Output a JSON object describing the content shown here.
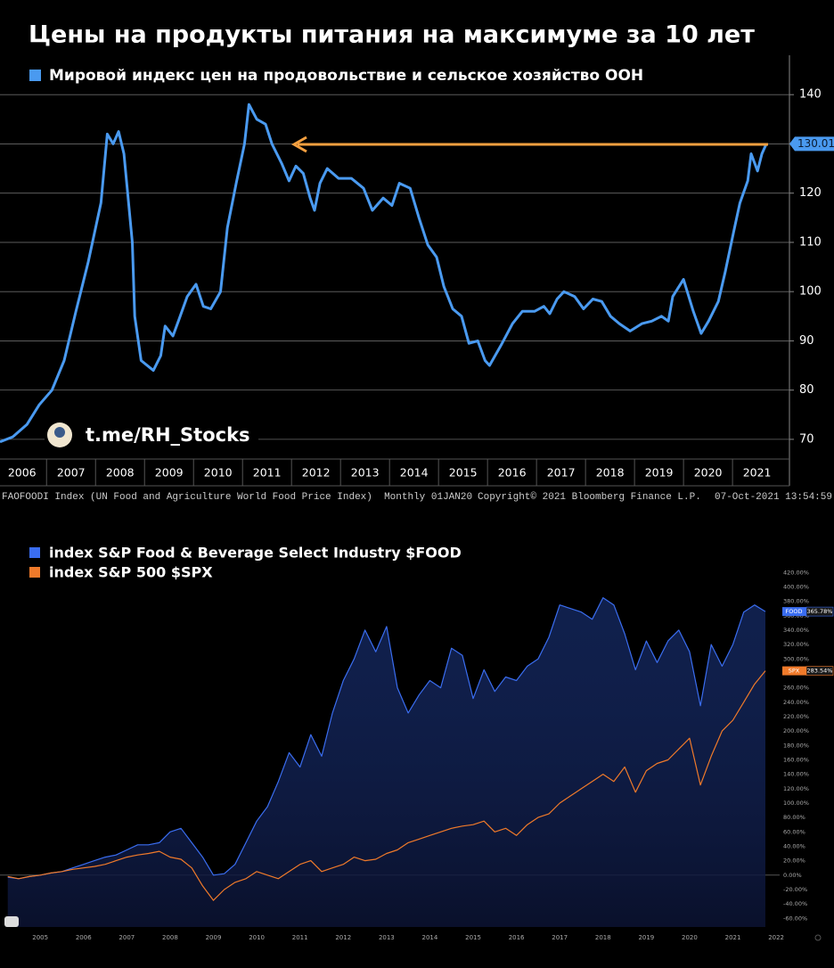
{
  "chart_data": [
    {
      "type": "line",
      "title": "Цены на продукты питания на максимуме за 10 лет",
      "x": [
        2006.05,
        2006.31,
        2006.6,
        2006.85,
        2007.11,
        2007.36,
        2007.6,
        2007.85,
        2008.11,
        2008.24,
        2008.36,
        2008.47,
        2008.58,
        2008.75,
        2008.8,
        2008.93,
        2009.18,
        2009.33,
        2009.42,
        2009.58,
        2009.69,
        2009.87,
        2010.05,
        2010.2,
        2010.35,
        2010.55,
        2010.69,
        2010.87,
        2011.04,
        2011.13,
        2011.29,
        2011.47,
        2011.6,
        2011.8,
        2011.95,
        2012.09,
        2012.24,
        2012.38,
        2012.47,
        2012.58,
        2012.73,
        2012.96,
        2013.22,
        2013.47,
        2013.65,
        2013.87,
        2014.05,
        2014.2,
        2014.42,
        2014.6,
        2014.78,
        2014.96,
        2015.11,
        2015.29,
        2015.47,
        2015.62,
        2015.8,
        2015.95,
        2016.04,
        2016.27,
        2016.51,
        2016.71,
        2016.96,
        2017.15,
        2017.27,
        2017.42,
        2017.56,
        2017.78,
        2017.96,
        2018.15,
        2018.33,
        2018.51,
        2018.69,
        2018.91,
        2019.15,
        2019.35,
        2019.55,
        2019.69,
        2019.78,
        2020.0,
        2020.2,
        2020.36,
        2020.51,
        2020.71,
        2020.85,
        2021.02,
        2021.15,
        2021.31,
        2021.38,
        2021.51,
        2021.6,
        2021.69
      ],
      "series": [
        {
          "name": "Мировой индекс цен на продовольствие и сельское хозяйство ООН",
          "color": "#4a9af0",
          "values": [
            69.5,
            70.5,
            73,
            77,
            80,
            86,
            96,
            106,
            118,
            132,
            130,
            132.5,
            128,
            110,
            95,
            86,
            84,
            87,
            93,
            91,
            94,
            99,
            101.5,
            97,
            96.5,
            100,
            113,
            122,
            130,
            138,
            135,
            134,
            130,
            126,
            122.5,
            125.5,
            124,
            119,
            116.5,
            122,
            125,
            123,
            123,
            121,
            116.5,
            119,
            117.5,
            122,
            121,
            115,
            109.5,
            107,
            101,
            96.5,
            95,
            89.5,
            90,
            86,
            85,
            89,
            93.5,
            96,
            96,
            97,
            95.5,
            98.5,
            100,
            99,
            96.5,
            98.5,
            98,
            95,
            93.5,
            92,
            93.5,
            94,
            95,
            94,
            99,
            102.5,
            96,
            91.5,
            94,
            98,
            104,
            112,
            118,
            122.5,
            128,
            124.5,
            128,
            130.01
          ]
        }
      ],
      "xlim": [
        2006.05,
        2021.98
      ],
      "xticks": [
        2006,
        2007,
        2008,
        2009,
        2010,
        2011,
        2012,
        2013,
        2014,
        2015,
        2016,
        2017,
        2018,
        2019,
        2020,
        2021
      ],
      "ylim": [
        66,
        148
      ],
      "yticks": [
        70,
        80,
        90,
        100,
        110,
        120,
        130,
        140
      ],
      "grid": true,
      "watermark": "t.me/RH_Stocks",
      "source": "FAOFOODI Index (UN Food and Agriculture World Food Price Index)  Monthly 01JAN20",
      "copyright": "Copyright© 2021 Bloomberg Finance L.P.",
      "timestamp": "07-Oct-2021 13:54:59"
    },
    {
      "type": "area-line",
      "x": [
        2004.25,
        2004.5,
        2004.75,
        2005,
        2005.25,
        2005.5,
        2005.75,
        2006,
        2006.25,
        2006.5,
        2006.75,
        2007,
        2007.25,
        2007.5,
        2007.75,
        2008,
        2008.25,
        2008.5,
        2008.75,
        2009,
        2009.25,
        2009.5,
        2009.75,
        2010,
        2010.25,
        2010.5,
        2010.75,
        2011,
        2011.25,
        2011.5,
        2011.75,
        2012,
        2012.25,
        2012.5,
        2012.75,
        2013,
        2013.25,
        2013.5,
        2013.75,
        2014,
        2014.25,
        2014.5,
        2014.75,
        2015,
        2015.25,
        2015.5,
        2015.75,
        2016,
        2016.25,
        2016.5,
        2016.75,
        2017,
        2017.25,
        2017.5,
        2017.75,
        2018,
        2018.25,
        2018.5,
        2018.75,
        2019,
        2019.25,
        2019.5,
        2019.75,
        2020,
        2020.25,
        2020.5,
        2020.75,
        2021,
        2021.25,
        2021.5,
        2021.75
      ],
      "series": [
        {
          "name": "index S&P Food & Beverage Select Industry $FOOD",
          "tag": "FOOD",
          "color": "#3a6df0",
          "values": [
            -3,
            -5,
            -2,
            0,
            3,
            5,
            10,
            15,
            20,
            25,
            28,
            35,
            42,
            42,
            45,
            60,
            65,
            45,
            25,
            0,
            2,
            15,
            45,
            75,
            95,
            130,
            170,
            150,
            195,
            165,
            225,
            270,
            300,
            340,
            310,
            345,
            260,
            225,
            250,
            270,
            260,
            315,
            305,
            245,
            285,
            255,
            275,
            270,
            290,
            300,
            330,
            375,
            370,
            365,
            355,
            385,
            375,
            335,
            285,
            325,
            295,
            325,
            340,
            310,
            235,
            320,
            290,
            320,
            365,
            375,
            365.78
          ],
          "value_labels": [
            null,
            null,
            null,
            null,
            null,
            null,
            null,
            null,
            null,
            null,
            null,
            null,
            null,
            null,
            null,
            null,
            null,
            null,
            null,
            null,
            null,
            null,
            null,
            null,
            null,
            null,
            null,
            null,
            null,
            null,
            null,
            null,
            null,
            null,
            null,
            null,
            null,
            null,
            null,
            null,
            null,
            null,
            null,
            null,
            null,
            null,
            null,
            null,
            null,
            null,
            null,
            null,
            null,
            null,
            null,
            null,
            null,
            null,
            null,
            null,
            null,
            null,
            null,
            null,
            null,
            null,
            null,
            null,
            null,
            null,
            "365.78%"
          ]
        },
        {
          "name": "index S&P 500 $SPX",
          "tag": "SPX",
          "color": "#f07a2a",
          "values": [
            -2,
            -5,
            -2,
            0,
            3,
            5,
            8,
            10,
            12,
            15,
            20,
            25,
            28,
            30,
            33,
            25,
            22,
            10,
            -15,
            -35,
            -20,
            -10,
            -5,
            5,
            0,
            -5,
            5,
            15,
            20,
            5,
            10,
            15,
            25,
            20,
            22,
            30,
            35,
            45,
            50,
            55,
            60,
            65,
            68,
            70,
            75,
            60,
            65,
            55,
            70,
            80,
            85,
            100,
            110,
            120,
            130,
            140,
            130,
            150,
            115,
            145,
            155,
            160,
            175,
            190,
            125,
            165,
            200,
            215,
            240,
            265,
            283.54
          ],
          "value_labels": [
            null,
            null,
            null,
            null,
            null,
            null,
            null,
            null,
            null,
            null,
            null,
            null,
            null,
            null,
            null,
            null,
            null,
            null,
            null,
            null,
            null,
            null,
            null,
            null,
            null,
            null,
            null,
            null,
            null,
            null,
            null,
            null,
            null,
            null,
            null,
            null,
            null,
            null,
            null,
            null,
            null,
            null,
            null,
            null,
            null,
            null,
            null,
            null,
            null,
            null,
            null,
            null,
            null,
            null,
            null,
            null,
            null,
            null,
            null,
            null,
            null,
            null,
            null,
            null,
            null,
            null,
            null,
            null,
            null,
            null,
            "283.54%"
          ]
        }
      ],
      "xlim": [
        2004.07,
        2022.08
      ],
      "xticks": [
        2005,
        2006,
        2007,
        2008,
        2009,
        2010,
        2011,
        2012,
        2013,
        2014,
        2015,
        2016,
        2017,
        2018,
        2019,
        2020,
        2021,
        2022
      ],
      "ylim": [
        -72,
        429
      ],
      "yticks": [
        {
          "value": 420,
          "label": "420.00%"
        },
        {
          "value": 400,
          "label": "400.00%"
        },
        {
          "value": 380,
          "label": "380.00%"
        },
        {
          "value": 360,
          "label": "360.00%"
        },
        {
          "value": 340,
          "label": "340.00%"
        },
        {
          "value": 320,
          "label": "320.00%"
        },
        {
          "value": 300,
          "label": "300.00%"
        },
        {
          "value": 280,
          "label": "280.00%"
        },
        {
          "value": 260,
          "label": "260.00%"
        },
        {
          "value": 240,
          "label": "240.00%"
        },
        {
          "value": 220,
          "label": "220.00%"
        },
        {
          "value": 200,
          "label": "200.00%"
        },
        {
          "value": 180,
          "label": "180.00%"
        },
        {
          "value": 160,
          "label": "160.00%"
        },
        {
          "value": 140,
          "label": "140.00%"
        },
        {
          "value": 120,
          "label": "120.00%"
        },
        {
          "value": 100,
          "label": "100.00%"
        },
        {
          "value": 80,
          "label": "80.00%"
        },
        {
          "value": 60,
          "label": "60.00%"
        },
        {
          "value": 40,
          "label": "40.00%"
        },
        {
          "value": 20,
          "label": "20.00%"
        },
        {
          "value": 0,
          "label": "0.00%"
        },
        {
          "value": -20,
          "label": "-20.00%"
        },
        {
          "value": -40,
          "label": "-40.00%"
        },
        {
          "value": -60,
          "label": "-60.00%"
        }
      ]
    }
  ]
}
